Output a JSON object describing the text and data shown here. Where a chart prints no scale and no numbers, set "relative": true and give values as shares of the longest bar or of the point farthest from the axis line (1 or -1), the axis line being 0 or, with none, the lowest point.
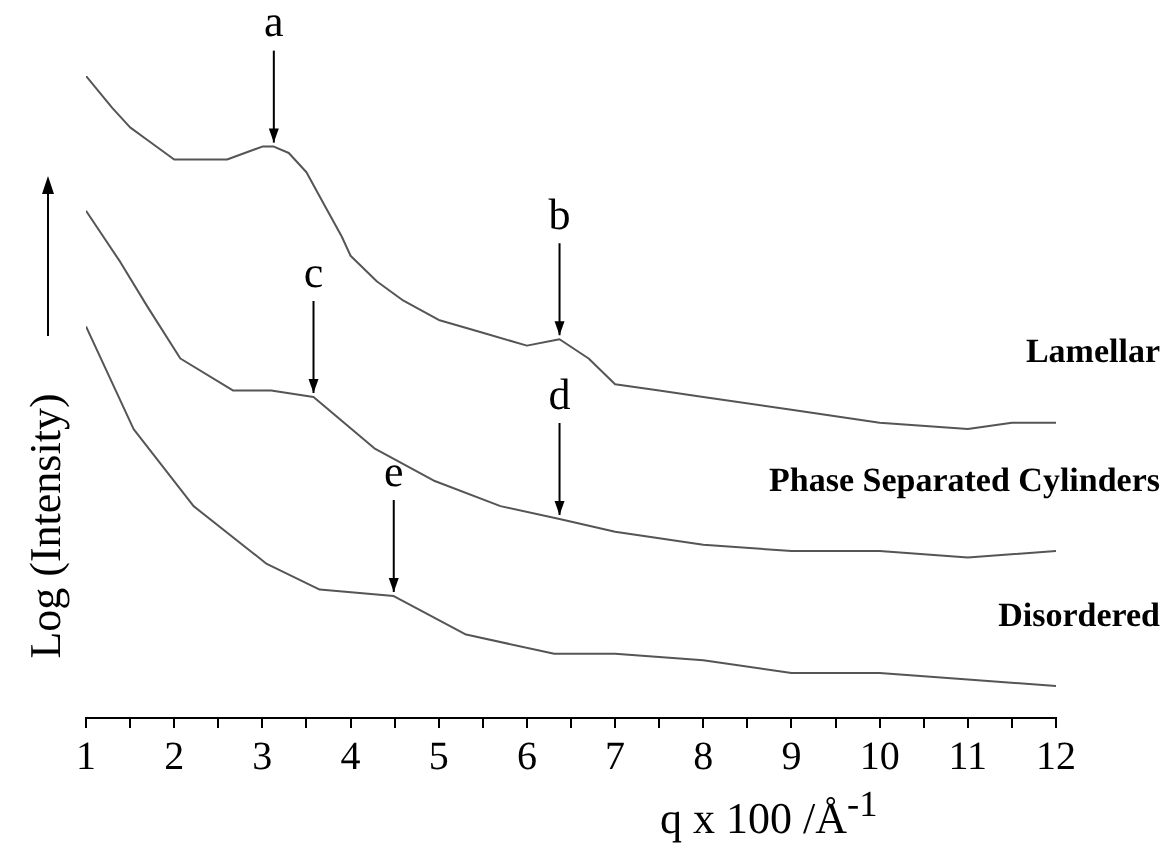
{
  "chart_data": {
    "type": "line",
    "relative": true,
    "xlabel": "q x 100 /Å$^{-1}$",
    "ylabel": "Log (Intensity)",
    "xlim": [
      1,
      12
    ],
    "xticks": [
      1,
      {
        "value": 1.5,
        "label": null
      },
      2,
      {
        "value": 2.5,
        "label": null
      },
      3,
      {
        "value": 3.5,
        "label": null
      },
      4,
      {
        "value": 4.5,
        "label": null
      },
      5,
      {
        "value": 5.5,
        "label": null
      },
      6,
      {
        "value": 6.5,
        "label": null
      },
      7,
      {
        "value": 7.5,
        "label": null
      },
      8,
      {
        "value": 8.5,
        "label": null
      },
      9,
      {
        "value": 9.5,
        "label": null
      },
      10,
      {
        "value": 10.5,
        "label": null
      },
      11,
      {
        "value": 11.5,
        "label": null
      },
      12
    ],
    "grid": false,
    "legend": false,
    "marker": "none",
    "line_style": "solid",
    "series": [
      {
        "name": "Lamellar",
        "color": "#555555",
        "x": [
          1,
          1.3,
          1.5,
          1.7,
          2.0,
          2.3,
          2.6,
          3.0,
          3.13,
          3.3,
          3.5,
          3.7,
          3.9,
          4.0,
          4.3,
          4.6,
          5.0,
          5.5,
          6.0,
          6.37,
          6.7,
          7,
          7.5,
          8,
          9,
          10,
          11,
          11.5,
          12
        ],
        "values": [
          1.0,
          0.95,
          0.92,
          0.9,
          0.87,
          0.87,
          0.87,
          0.89,
          0.89,
          0.88,
          0.85,
          0.8,
          0.75,
          0.72,
          0.68,
          0.65,
          0.62,
          0.6,
          0.58,
          0.59,
          0.56,
          0.52,
          0.51,
          0.5,
          0.48,
          0.46,
          0.45,
          0.46,
          0.46
        ]
      },
      {
        "name": "Phase Separated Cylinders",
        "color": "#555555",
        "x": [
          1,
          1.39,
          1.7,
          2.07,
          2.67,
          3.1,
          3.58,
          4.27,
          4.94,
          5.7,
          6.37,
          7,
          8,
          9,
          10,
          11,
          12
        ],
        "values": [
          0.79,
          0.71,
          0.64,
          0.56,
          0.51,
          0.51,
          0.5,
          0.42,
          0.37,
          0.33,
          0.31,
          0.29,
          0.27,
          0.26,
          0.26,
          0.25,
          0.26
        ]
      },
      {
        "name": "Disordered",
        "color": "#555555",
        "x": [
          1,
          1.54,
          2.22,
          3.05,
          3.65,
          4.49,
          5.31,
          6.31,
          7,
          8,
          9,
          10,
          11,
          12
        ],
        "values": [
          0.61,
          0.45,
          0.33,
          0.24,
          0.2,
          0.19,
          0.13,
          0.1,
          0.1,
          0.09,
          0.07,
          0.07,
          0.06,
          0.05
        ]
      }
    ],
    "annotations": [
      {
        "text": "a",
        "x": 3.13,
        "y": 0.89
      },
      {
        "text": "b",
        "x": 6.37,
        "y": 0.59
      },
      {
        "text": "c",
        "x": 3.58,
        "y": 0.5
      },
      {
        "text": "d",
        "x": 6.37,
        "y": 0.31
      },
      {
        "text": "e",
        "x": 4.49,
        "y": 0.19
      }
    ]
  }
}
